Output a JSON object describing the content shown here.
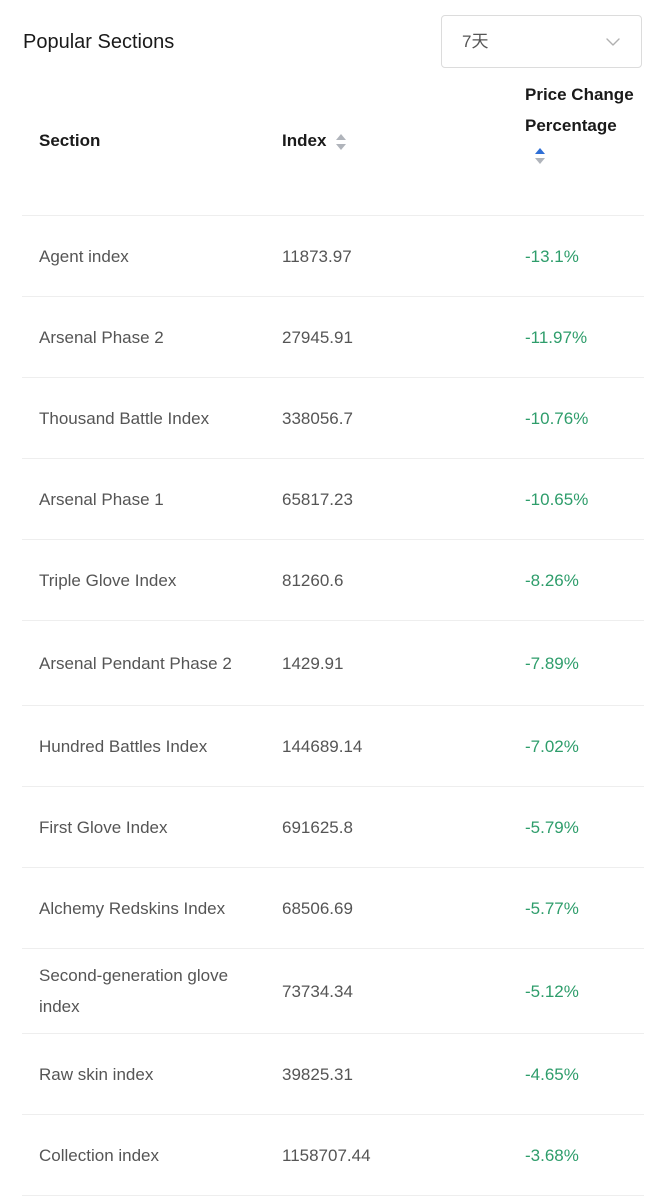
{
  "header": {
    "title": "Popular Sections",
    "period_select": {
      "value": "7天"
    }
  },
  "table": {
    "columns": {
      "section": "Section",
      "index": "Index",
      "change": "Price Change Percentage"
    },
    "rows": [
      {
        "section": "Agent index",
        "index": "11873.97",
        "change": "-13.1%"
      },
      {
        "section": "Arsenal Phase 2",
        "index": "27945.91",
        "change": "-11.97%"
      },
      {
        "section": "Thousand Battle Index",
        "index": "338056.7",
        "change": "-10.76%"
      },
      {
        "section": "Arsenal Phase 1",
        "index": "65817.23",
        "change": "-10.65%"
      },
      {
        "section": "Triple Glove Index",
        "index": "81260.6",
        "change": "-8.26%"
      },
      {
        "section": "Arsenal Pendant Phase 2",
        "index": "1429.91",
        "change": "-7.89%"
      },
      {
        "section": "Hundred Battles Index",
        "index": "144689.14",
        "change": "-7.02%"
      },
      {
        "section": "First Glove Index",
        "index": "691625.8",
        "change": "-5.79%"
      },
      {
        "section": "Alchemy Redskins Index",
        "index": "68506.69",
        "change": "-5.77%"
      },
      {
        "section": "Second-generation glove index",
        "index": "73734.34",
        "change": "-5.12%"
      },
      {
        "section": "Raw skin index",
        "index": "39825.31",
        "change": "-4.65%"
      },
      {
        "section": "Collection index",
        "index": "1158707.44",
        "change": "-3.68%"
      }
    ]
  },
  "colors": {
    "negative_change": "#2e9d6b",
    "sort_active": "#2f6fd6",
    "sort_inactive": "#b0b4bb"
  },
  "icons": {
    "period_chevron": "chevron-down-icon",
    "index_sort": "sort-icon",
    "change_sort": "sort-icon"
  }
}
